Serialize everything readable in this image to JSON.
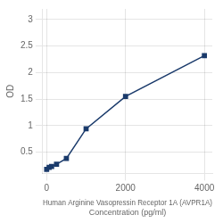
{
  "chart_data": {
    "type": "line",
    "x": [
      0,
      62.5,
      125,
      250,
      500,
      1000,
      2000,
      4000
    ],
    "values": [
      0.176,
      0.212,
      0.232,
      0.272,
      0.38,
      0.94,
      1.55,
      2.32
    ],
    "color": "#1a3a6b",
    "marker": "square",
    "xlabel": "Human Arginine Vasopressin Receptor 1A (AVPR1A)\nConcentration (pg/ml)",
    "ylabel": "OD",
    "xlim": [
      -100,
      4200
    ],
    "ylim": [
      0.1,
      3.2
    ],
    "xticks": [
      0,
      2000,
      4000
    ],
    "yticks": [
      0.5,
      1,
      1.5,
      2,
      2.5,
      3
    ],
    "grid": true
  }
}
